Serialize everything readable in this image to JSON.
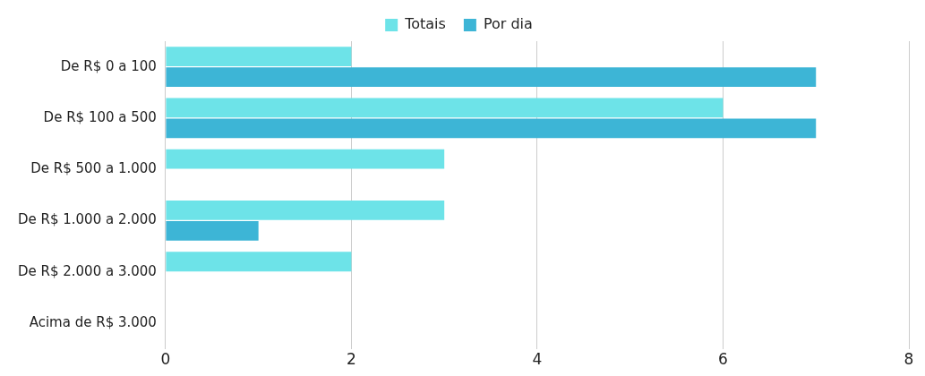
{
  "chart_data": {
    "type": "bar",
    "orientation": "horizontal",
    "categories": [
      "De R$ 0 a 100",
      "De R$ 100 a 500",
      "De R$ 500 a 1.000",
      "De R$ 1.000 a 2.000",
      "De R$ 2.000 a 3.000",
      "Acima de R$ 3.000"
    ],
    "series": [
      {
        "name": "Totais",
        "color": "#6de3e8",
        "values": [
          2,
          6,
          3,
          3,
          2,
          0
        ]
      },
      {
        "name": "Por dia",
        "color": "#3db5d6",
        "values": [
          7,
          7,
          0,
          1,
          0,
          0
        ]
      }
    ],
    "xlim": [
      0,
      8
    ],
    "xticks": [
      0,
      2,
      4,
      6,
      8
    ],
    "grid": "x",
    "legend": "top"
  }
}
